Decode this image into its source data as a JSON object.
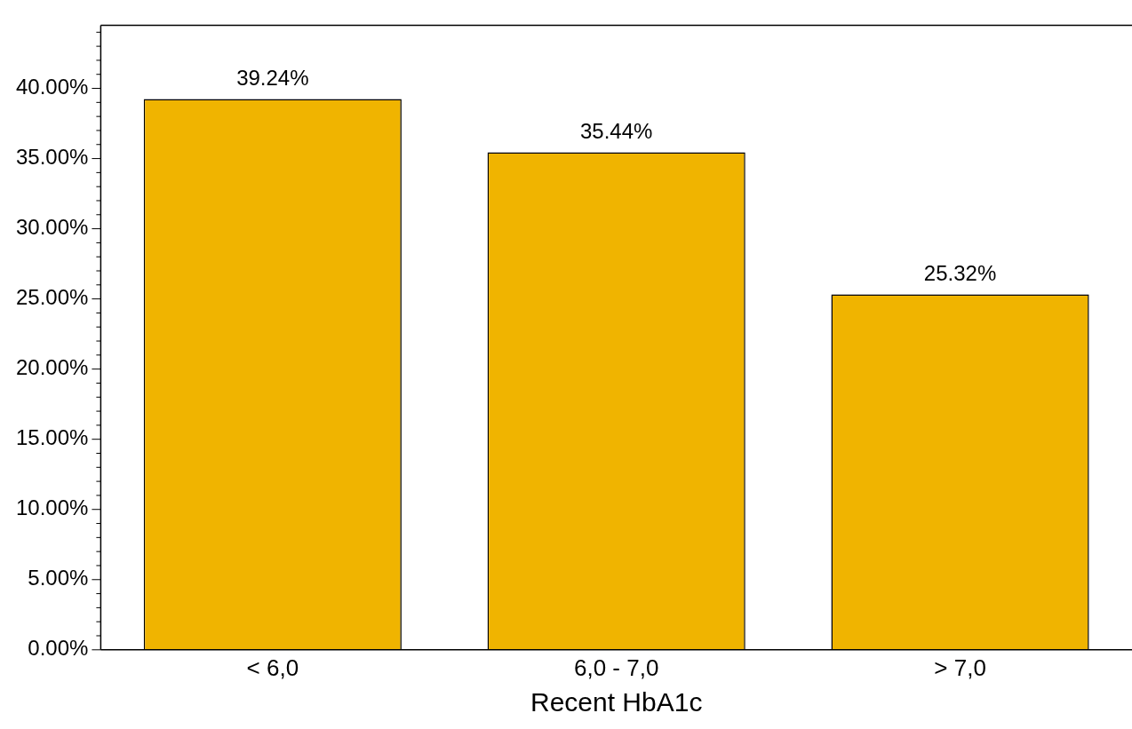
{
  "chart_data": {
    "type": "bar",
    "xlabel": "Recent HbA1c",
    "categories": [
      "< 6,0",
      "6,0 - 7,0",
      "> 7,0"
    ],
    "values": [
      39.24,
      35.44,
      25.32
    ],
    "color": "#f0b400",
    "value_labels": [
      "39.24%",
      "35.44%",
      "25.32%"
    ],
    "ylim": [
      0,
      44.5
    ],
    "yticks": [
      {
        "value": 0,
        "label": "0.00%"
      },
      {
        "value": 1,
        "label": null
      },
      {
        "value": 2,
        "label": null
      },
      {
        "value": 3,
        "label": null
      },
      {
        "value": 4,
        "label": null
      },
      {
        "value": 5,
        "label": "5.00%"
      },
      {
        "value": 6,
        "label": null
      },
      {
        "value": 7,
        "label": null
      },
      {
        "value": 8,
        "label": null
      },
      {
        "value": 9,
        "label": null
      },
      {
        "value": 10,
        "label": "10.00%"
      },
      {
        "value": 11,
        "label": null
      },
      {
        "value": 12,
        "label": null
      },
      {
        "value": 13,
        "label": null
      },
      {
        "value": 14,
        "label": null
      },
      {
        "value": 15,
        "label": "15.00%"
      },
      {
        "value": 16,
        "label": null
      },
      {
        "value": 17,
        "label": null
      },
      {
        "value": 18,
        "label": null
      },
      {
        "value": 19,
        "label": null
      },
      {
        "value": 20,
        "label": "20.00%"
      },
      {
        "value": 21,
        "label": null
      },
      {
        "value": 22,
        "label": null
      },
      {
        "value": 23,
        "label": null
      },
      {
        "value": 24,
        "label": null
      },
      {
        "value": 25,
        "label": "25.00%"
      },
      {
        "value": 26,
        "label": null
      },
      {
        "value": 27,
        "label": null
      },
      {
        "value": 28,
        "label": null
      },
      {
        "value": 29,
        "label": null
      },
      {
        "value": 30,
        "label": "30.00%"
      },
      {
        "value": 31,
        "label": null
      },
      {
        "value": 32,
        "label": null
      },
      {
        "value": 33,
        "label": null
      },
      {
        "value": 34,
        "label": null
      },
      {
        "value": 35,
        "label": "35.00%"
      },
      {
        "value": 36,
        "label": null
      },
      {
        "value": 37,
        "label": null
      },
      {
        "value": 38,
        "label": null
      },
      {
        "value": 39,
        "label": null
      },
      {
        "value": 40,
        "label": "40.00%"
      },
      {
        "value": 41,
        "label": null
      },
      {
        "value": 42,
        "label": null
      },
      {
        "value": 43,
        "label": null
      },
      {
        "value": 44,
        "label": null
      }
    ],
    "grid": false,
    "legend": false
  }
}
